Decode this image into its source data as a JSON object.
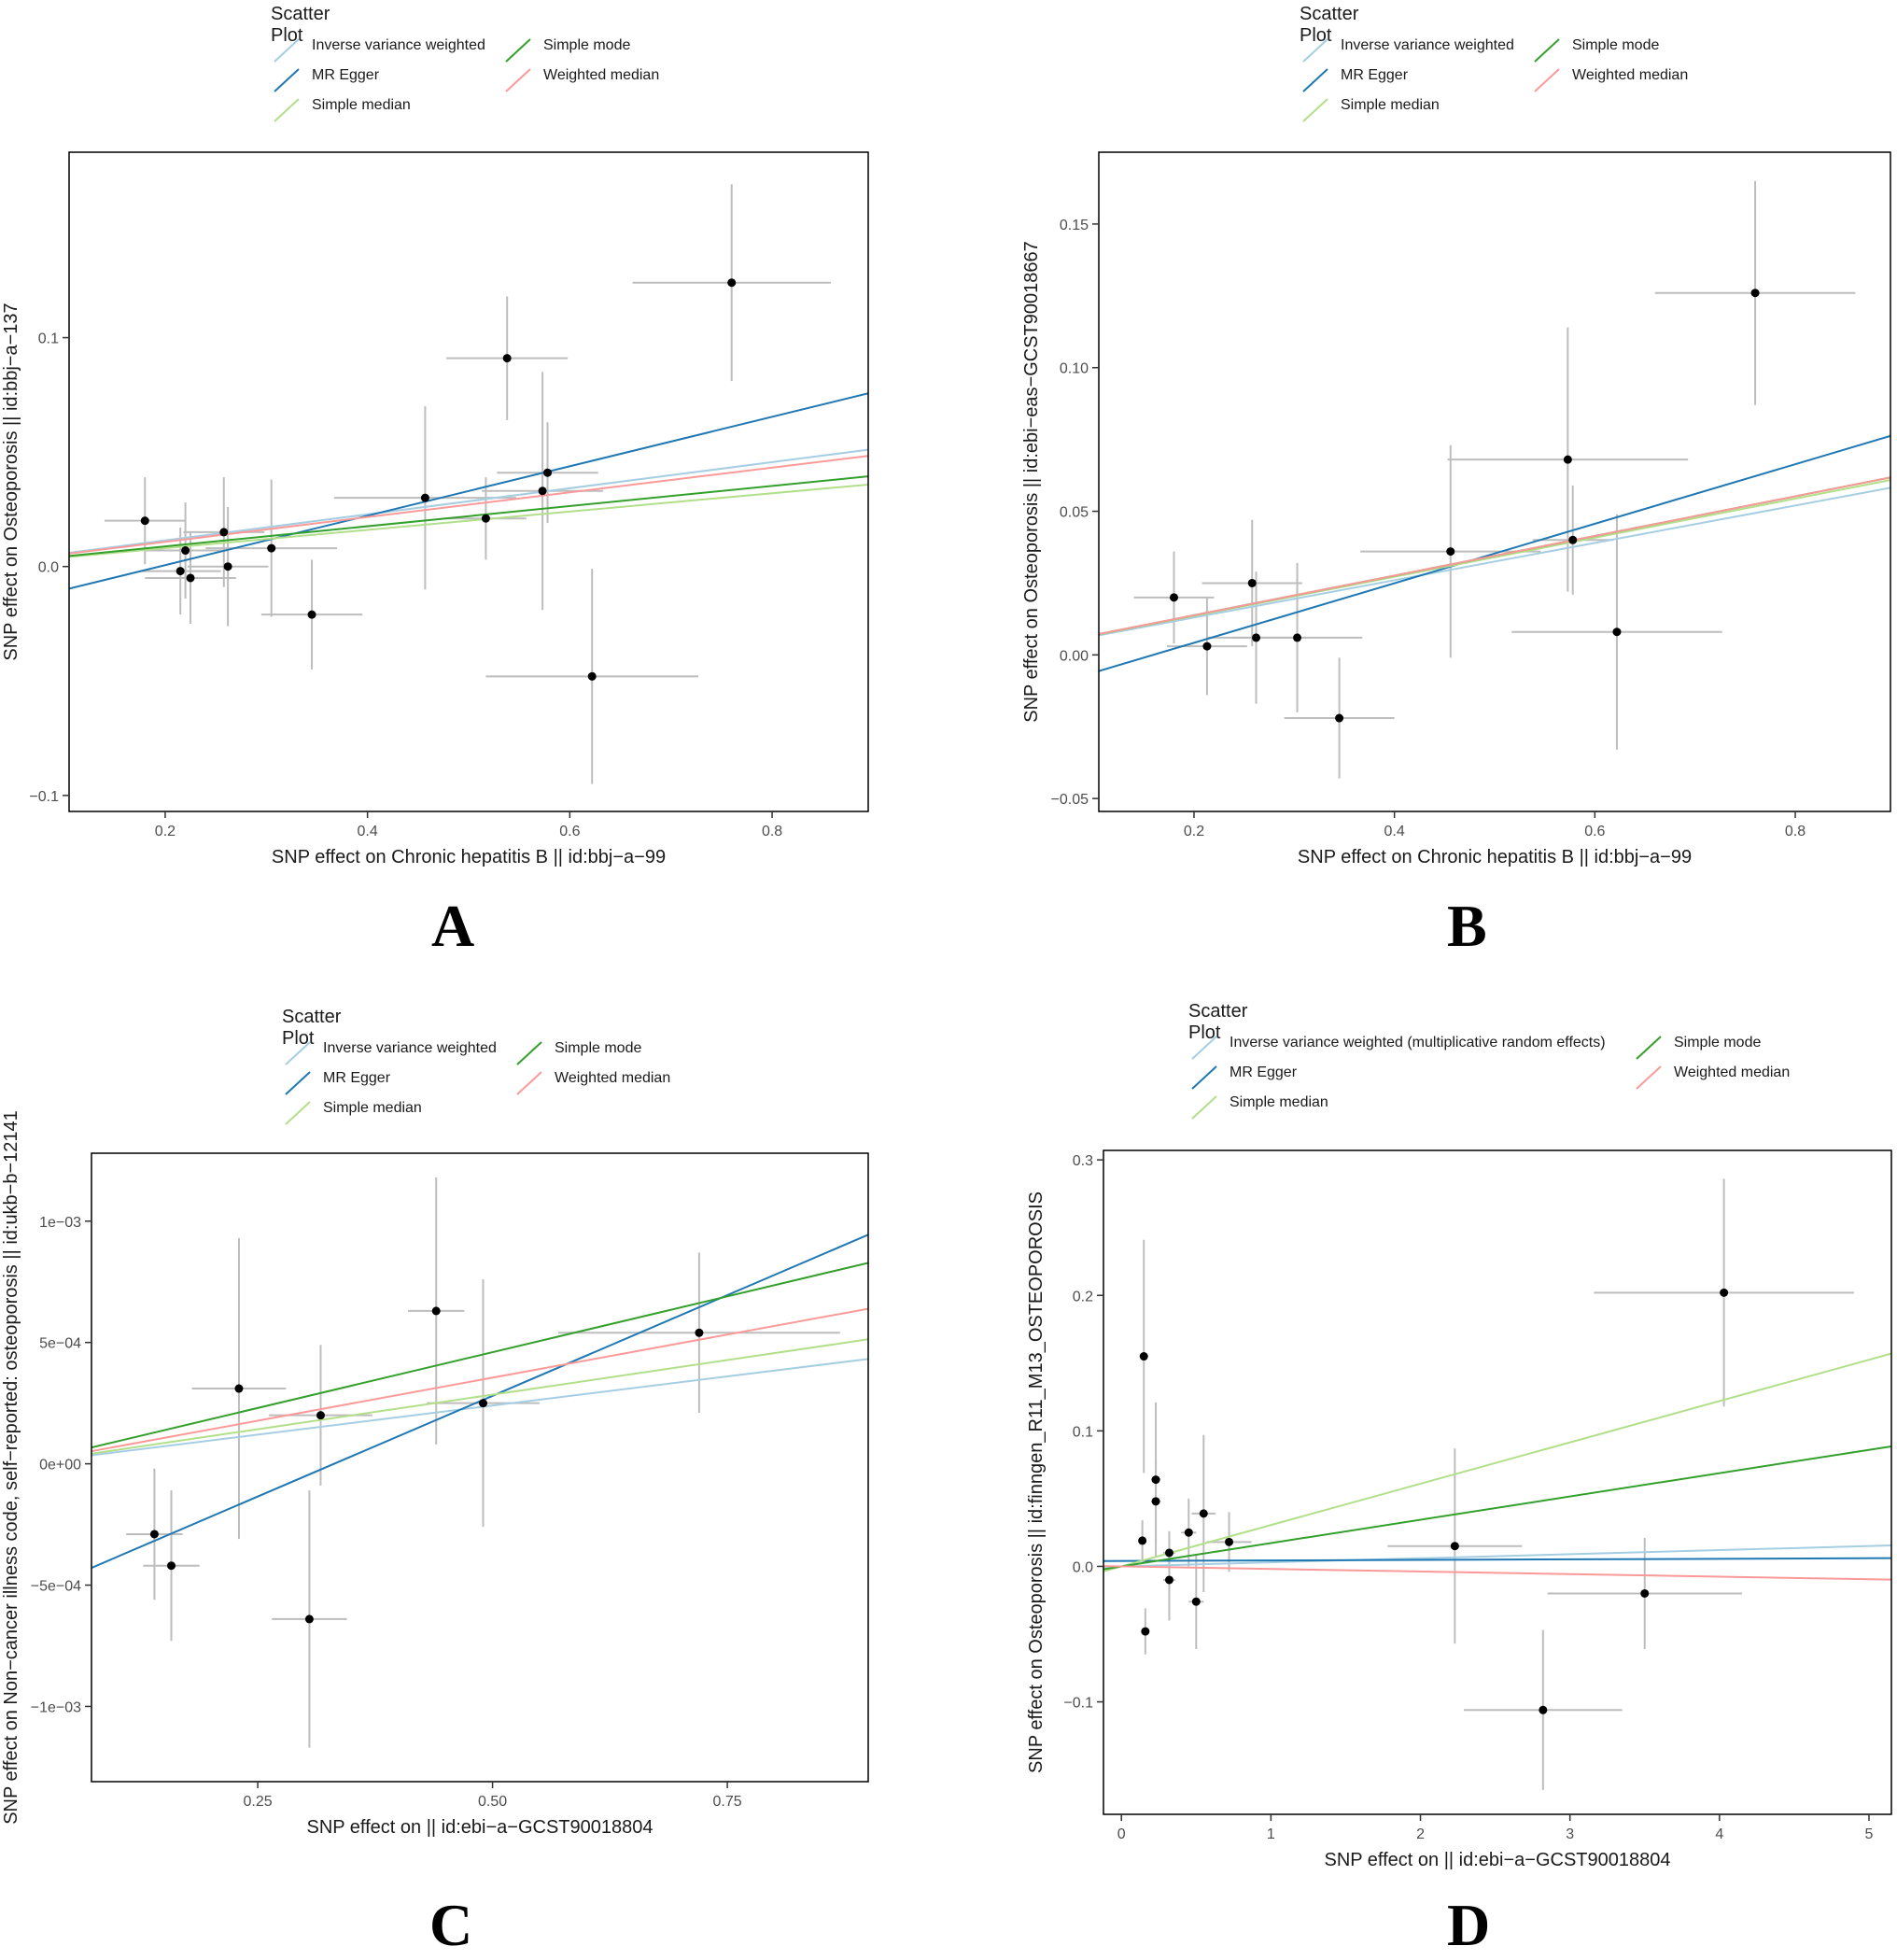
{
  "chart_data": [
    {
      "panel": "A",
      "type": "scatter",
      "legend_title": "Scatter Plot",
      "legend": [
        {
          "label": "Inverse variance weighted",
          "color": "#a6cee3"
        },
        {
          "label": "MR Egger",
          "color": "#1f78b4"
        },
        {
          "label": "Simple median",
          "color": "#b2df8a"
        },
        {
          "label": "Simple mode",
          "color": "#33a02c"
        },
        {
          "label": "Weighted median",
          "color": "#fb9a99"
        }
      ],
      "xlabel": "SNP effect on Chronic hepatitis B || id:bbj−a−99",
      "ylabel": "SNP effect on Osteoporosis || id:bbj−a−137",
      "xlim": [
        0.105,
        0.895
      ],
      "ylim": [
        -0.107,
        0.181
      ],
      "xticks": [
        0.2,
        0.4,
        0.6,
        0.8
      ],
      "xtick_labels": [
        "0.2",
        "0.4",
        "0.6",
        "0.8"
      ],
      "yticks": [
        -0.1,
        0.0,
        0.1
      ],
      "ytick_labels": [
        "−0.1",
        "0.0",
        "0.1"
      ],
      "points": [
        {
          "x": 0.18,
          "y": 0.02,
          "xerr": 0.04,
          "yerr": 0.019
        },
        {
          "x": 0.215,
          "y": -0.002,
          "xerr": 0.04,
          "yerr": 0.019
        },
        {
          "x": 0.22,
          "y": 0.007,
          "xerr": 0.04,
          "yerr": 0.021
        },
        {
          "x": 0.225,
          "y": -0.005,
          "xerr": 0.045,
          "yerr": 0.02
        },
        {
          "x": 0.258,
          "y": 0.015,
          "xerr": 0.04,
          "yerr": 0.024
        },
        {
          "x": 0.262,
          "y": 0.0,
          "xerr": 0.04,
          "yerr": 0.026
        },
        {
          "x": 0.305,
          "y": 0.008,
          "xerr": 0.065,
          "yerr": 0.03
        },
        {
          "x": 0.345,
          "y": -0.021,
          "xerr": 0.05,
          "yerr": 0.024
        },
        {
          "x": 0.457,
          "y": 0.03,
          "xerr": 0.09,
          "yerr": 0.04
        },
        {
          "x": 0.517,
          "y": 0.021,
          "xerr": 0.04,
          "yerr": 0.018
        },
        {
          "x": 0.538,
          "y": 0.091,
          "xerr": 0.06,
          "yerr": 0.027
        },
        {
          "x": 0.573,
          "y": 0.033,
          "xerr": 0.06,
          "yerr": 0.052
        },
        {
          "x": 0.578,
          "y": 0.041,
          "xerr": 0.05,
          "yerr": 0.022
        },
        {
          "x": 0.622,
          "y": -0.048,
          "xerr": 0.105,
          "yerr": 0.047
        },
        {
          "x": 0.76,
          "y": 0.124,
          "xerr": 0.098,
          "yerr": 0.043
        }
      ],
      "lines": [
        {
          "method": "Inverse variance weighted",
          "color": "#a6cee3",
          "intercept": 0.0,
          "slope": 0.057
        },
        {
          "method": "MR Egger",
          "color": "#1f78b4",
          "intercept": -0.021,
          "slope": 0.108
        },
        {
          "method": "Simple median",
          "color": "#b2df8a",
          "intercept": 0.0,
          "slope": 0.04
        },
        {
          "method": "Simple mode",
          "color": "#33a02c",
          "intercept": 0.0,
          "slope": 0.044
        },
        {
          "method": "Weighted median",
          "color": "#fb9a99",
          "intercept": 0.0,
          "slope": 0.054
        }
      ]
    },
    {
      "panel": "B",
      "type": "scatter",
      "legend_title": "Scatter Plot",
      "legend": [
        {
          "label": "Inverse variance weighted",
          "color": "#a6cee3"
        },
        {
          "label": "MR Egger",
          "color": "#1f78b4"
        },
        {
          "label": "Simple median",
          "color": "#b2df8a"
        },
        {
          "label": "Simple mode",
          "color": "#33a02c"
        },
        {
          "label": "Weighted median",
          "color": "#fb9a99"
        }
      ],
      "xlabel": "SNP effect on Chronic hepatitis B || id:bbj−a−99",
      "ylabel": "SNP effect on Osteoporosis || id:ebi−eas−GCST90018667",
      "xlim": [
        0.105,
        0.895
      ],
      "ylim": [
        -0.0545,
        0.175
      ],
      "xticks": [
        0.2,
        0.4,
        0.6,
        0.8
      ],
      "xtick_labels": [
        "0.2",
        "0.4",
        "0.6",
        "0.8"
      ],
      "yticks": [
        -0.05,
        0.0,
        0.05,
        0.1,
        0.15
      ],
      "ytick_labels": [
        "−0.05",
        "0.00",
        "0.05",
        "0.10",
        "0.15"
      ],
      "points": [
        {
          "x": 0.18,
          "y": 0.02,
          "xerr": 0.04,
          "yerr": 0.016
        },
        {
          "x": 0.213,
          "y": 0.003,
          "xerr": 0.04,
          "yerr": 0.017
        },
        {
          "x": 0.258,
          "y": 0.025,
          "xerr": 0.05,
          "yerr": 0.022
        },
        {
          "x": 0.262,
          "y": 0.006,
          "xerr": 0.05,
          "yerr": 0.023
        },
        {
          "x": 0.303,
          "y": 0.006,
          "xerr": 0.065,
          "yerr": 0.026
        },
        {
          "x": 0.345,
          "y": -0.022,
          "xerr": 0.055,
          "yerr": 0.021
        },
        {
          "x": 0.456,
          "y": 0.036,
          "xerr": 0.09,
          "yerr": 0.037
        },
        {
          "x": 0.573,
          "y": 0.068,
          "xerr": 0.12,
          "yerr": 0.046
        },
        {
          "x": 0.578,
          "y": 0.04,
          "xerr": 0.04,
          "yerr": 0.019
        },
        {
          "x": 0.622,
          "y": 0.008,
          "xerr": 0.105,
          "yerr": 0.041
        },
        {
          "x": 0.76,
          "y": 0.126,
          "xerr": 0.1,
          "yerr": 0.039
        }
      ],
      "lines": [
        {
          "method": "Inverse variance weighted",
          "color": "#a6cee3",
          "intercept": 0.0,
          "slope": 0.065
        },
        {
          "method": "MR Egger",
          "color": "#1f78b4",
          "intercept": -0.0165,
          "slope": 0.1036
        },
        {
          "method": "Simple median",
          "color": "#b2df8a",
          "intercept": 0.0,
          "slope": 0.068
        },
        {
          "method": "Simple mode",
          "color": "#33a02c",
          "intercept": 0.0,
          "slope": 0.069
        },
        {
          "method": "Weighted median",
          "color": "#fb9a99",
          "intercept": 0.0,
          "slope": 0.069
        }
      ]
    },
    {
      "panel": "C",
      "type": "scatter",
      "legend_title": "Scatter Plot",
      "legend": [
        {
          "label": "Inverse variance weighted",
          "color": "#a6cee3"
        },
        {
          "label": "MR Egger",
          "color": "#1f78b4"
        },
        {
          "label": "Simple median",
          "color": "#b2df8a"
        },
        {
          "label": "Simple mode",
          "color": "#33a02c"
        },
        {
          "label": "Weighted median",
          "color": "#fb9a99"
        }
      ],
      "xlabel": "SNP effect on || id:ebi−a−GCST90018804",
      "ylabel": "SNP effect on Non−cancer illness code, self−reported: osteoporosis || id:ukb−b−12141",
      "xlim": [
        0.073,
        0.9
      ],
      "ylim": [
        -0.00131,
        0.00128
      ],
      "xticks": [
        0.25,
        0.5,
        0.75
      ],
      "xtick_labels": [
        "0.25",
        "0.50",
        "0.75"
      ],
      "yticks": [
        -0.001,
        -0.0005,
        0.0,
        0.0005,
        0.001
      ],
      "ytick_labels": [
        "−1e−03",
        "−5e−04",
        "0e+00",
        "5e−04",
        "1e−03"
      ],
      "points": [
        {
          "x": 0.14,
          "y": -0.00029,
          "xerr": 0.03,
          "yerr": 0.00027
        },
        {
          "x": 0.158,
          "y": -0.00042,
          "xerr": 0.03,
          "yerr": 0.00031
        },
        {
          "x": 0.23,
          "y": 0.00031,
          "xerr": 0.05,
          "yerr": 0.00062
        },
        {
          "x": 0.305,
          "y": -0.00064,
          "xerr": 0.04,
          "yerr": 0.00053
        },
        {
          "x": 0.317,
          "y": 0.0002,
          "xerr": 0.055,
          "yerr": 0.00029
        },
        {
          "x": 0.44,
          "y": 0.00063,
          "xerr": 0.03,
          "yerr": 0.00055
        },
        {
          "x": 0.49,
          "y": 0.00025,
          "xerr": 0.06,
          "yerr": 0.00051
        },
        {
          "x": 0.72,
          "y": 0.00054,
          "xerr": 0.15,
          "yerr": 0.00033
        }
      ],
      "lines": [
        {
          "method": "Inverse variance weighted",
          "color": "#a6cee3",
          "intercept": 0.0,
          "slope": 0.00048
        },
        {
          "method": "MR Egger",
          "color": "#1f78b4",
          "intercept": -0.00055,
          "slope": 0.00166
        },
        {
          "method": "Simple median",
          "color": "#b2df8a",
          "intercept": 0.0,
          "slope": 0.00057
        },
        {
          "method": "Simple mode",
          "color": "#33a02c",
          "intercept": 0.0,
          "slope": 0.00092
        },
        {
          "method": "Weighted median",
          "color": "#fb9a99",
          "intercept": 0.0,
          "slope": 0.00071
        }
      ]
    },
    {
      "panel": "D",
      "type": "scatter",
      "legend_title": "Scatter Plot",
      "legend": [
        {
          "label": "Inverse variance weighted (multiplicative random effects)",
          "color": "#a6cee3"
        },
        {
          "label": "MR Egger",
          "color": "#1f78b4"
        },
        {
          "label": "Simple median",
          "color": "#b2df8a"
        },
        {
          "label": "Simple mode",
          "color": "#33a02c"
        },
        {
          "label": "Weighted median",
          "color": "#fb9a99"
        }
      ],
      "xlabel": "SNP effect on || id:ebi−a−GCST90018804",
      "ylabel": "SNP effect on Osteoporosis || id:finngen_R11_M13_OSTEOPOROSIS",
      "xlim": [
        -0.12,
        5.15
      ],
      "ylim": [
        -0.183,
        0.307
      ],
      "xticks": [
        0,
        1,
        2,
        3,
        4,
        5
      ],
      "xtick_labels": [
        "0",
        "1",
        "2",
        "3",
        "4",
        "5"
      ],
      "yticks": [
        -0.1,
        0.0,
        0.1,
        0.2,
        0.3
      ],
      "ytick_labels": [
        "−0.1",
        "0.0",
        "0.1",
        "0.2",
        "0.3"
      ],
      "points": [
        {
          "x": 0.15,
          "y": 0.155,
          "xerr": 0.02,
          "yerr": 0.086
        },
        {
          "x": 0.14,
          "y": 0.019,
          "xerr": 0.02,
          "yerr": 0.015
        },
        {
          "x": 0.16,
          "y": -0.048,
          "xerr": 0.02,
          "yerr": 0.017
        },
        {
          "x": 0.23,
          "y": 0.064,
          "xerr": 0.03,
          "yerr": 0.057
        },
        {
          "x": 0.23,
          "y": 0.048,
          "xerr": 0.03,
          "yerr": 0.03
        },
        {
          "x": 0.32,
          "y": 0.01,
          "xerr": 0.04,
          "yerr": 0.016
        },
        {
          "x": 0.32,
          "y": -0.01,
          "xerr": 0.04,
          "yerr": 0.03
        },
        {
          "x": 0.45,
          "y": 0.025,
          "xerr": 0.05,
          "yerr": 0.025
        },
        {
          "x": 0.5,
          "y": -0.026,
          "xerr": 0.05,
          "yerr": 0.035
        },
        {
          "x": 0.55,
          "y": 0.039,
          "xerr": 0.08,
          "yerr": 0.058
        },
        {
          "x": 0.72,
          "y": 0.018,
          "xerr": 0.15,
          "yerr": 0.022
        },
        {
          "x": 2.23,
          "y": 0.015,
          "xerr": 0.45,
          "yerr": 0.072
        },
        {
          "x": 2.82,
          "y": -0.106,
          "xerr": 0.53,
          "yerr": 0.059
        },
        {
          "x": 3.5,
          "y": -0.02,
          "xerr": 0.65,
          "yerr": 0.041
        },
        {
          "x": 4.03,
          "y": 0.202,
          "xerr": 0.87,
          "yerr": 0.084
        }
      ],
      "lines": [
        {
          "method": "Inverse variance weighted (multiplicative random effects)",
          "color": "#a6cee3",
          "intercept": 0.0,
          "slope": 0.003
        },
        {
          "method": "MR Egger",
          "color": "#1f78b4",
          "intercept": 0.004,
          "slope": 0.0004
        },
        {
          "method": "Simple median",
          "color": "#b2df8a",
          "intercept": 0.0,
          "slope": 0.0305
        },
        {
          "method": "Simple mode",
          "color": "#33a02c",
          "intercept": 0.0,
          "slope": 0.0172
        },
        {
          "method": "Weighted median",
          "color": "#fb9a99",
          "intercept": 0.0,
          "slope": -0.0019
        }
      ]
    }
  ]
}
